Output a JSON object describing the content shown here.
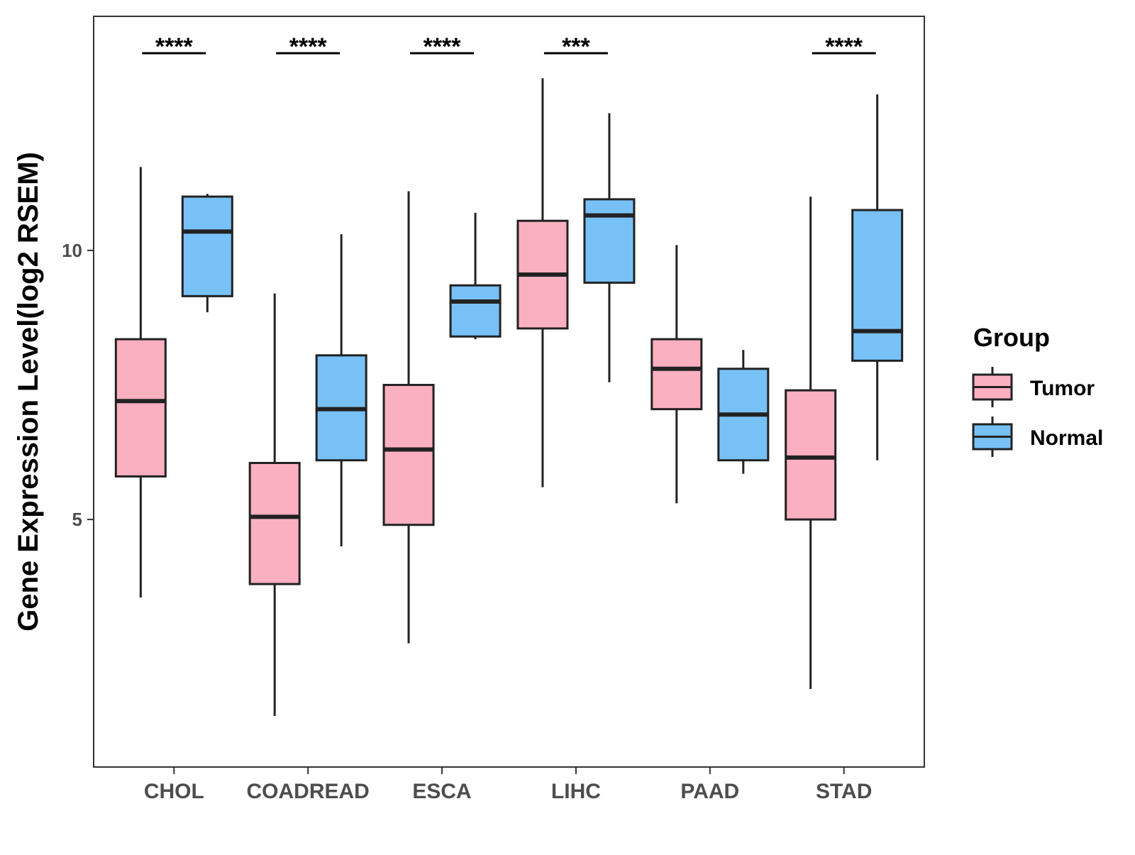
{
  "chart_data": {
    "type": "boxplot",
    "title": "",
    "xlabel": "",
    "ylabel": "Gene Expression Level(log2 RSEM)",
    "ylim": [
      0.4,
      14.35
    ],
    "yticks": [
      5,
      10
    ],
    "ytick_labels": [
      "5",
      "10"
    ],
    "categories": [
      "CHOL",
      "COADREAD",
      "ESCA",
      "LIHC",
      "PAAD",
      "STAD"
    ],
    "legend": {
      "title": "Group",
      "position": "right",
      "items": [
        {
          "label": "Tumor",
          "color": "#fbb0c1"
        },
        {
          "label": "Normal",
          "color": "#77c1f7"
        }
      ]
    },
    "series": [
      {
        "name": "Tumor",
        "color": "#fbb0c1",
        "boxes": [
          {
            "category": "CHOL",
            "whisker_low": 3.55,
            "q1": 5.8,
            "median": 7.2,
            "q3": 8.35,
            "whisker_high": 11.55
          },
          {
            "category": "COADREAD",
            "whisker_low": 1.35,
            "q1": 3.8,
            "median": 5.05,
            "q3": 6.05,
            "whisker_high": 9.2
          },
          {
            "category": "ESCA",
            "whisker_low": 2.7,
            "q1": 4.9,
            "median": 6.3,
            "q3": 7.5,
            "whisker_high": 11.1
          },
          {
            "category": "LIHC",
            "whisker_low": 5.6,
            "q1": 8.55,
            "median": 9.55,
            "q3": 10.55,
            "whisker_high": 13.2
          },
          {
            "category": "PAAD",
            "whisker_low": 5.3,
            "q1": 7.05,
            "median": 7.8,
            "q3": 8.35,
            "whisker_high": 10.1
          },
          {
            "category": "STAD",
            "whisker_low": 1.85,
            "q1": 5.0,
            "median": 6.15,
            "q3": 7.4,
            "whisker_high": 11.0
          }
        ]
      },
      {
        "name": "Normal",
        "color": "#77c1f7",
        "boxes": [
          {
            "category": "CHOL",
            "whisker_low": 8.85,
            "q1": 9.15,
            "median": 10.35,
            "q3": 11.0,
            "whisker_high": 11.05
          },
          {
            "category": "COADREAD",
            "whisker_low": 4.5,
            "q1": 6.1,
            "median": 7.05,
            "q3": 8.05,
            "whisker_high": 10.3
          },
          {
            "category": "ESCA",
            "whisker_low": 8.35,
            "q1": 8.4,
            "median": 9.05,
            "q3": 9.35,
            "whisker_high": 10.7
          },
          {
            "category": "LIHC",
            "whisker_low": 7.55,
            "q1": 9.4,
            "median": 10.65,
            "q3": 10.95,
            "whisker_high": 12.55
          },
          {
            "category": "PAAD",
            "whisker_low": 5.85,
            "q1": 6.1,
            "median": 6.95,
            "q3": 7.8,
            "whisker_high": 8.15
          },
          {
            "category": "STAD",
            "whisker_low": 6.1,
            "q1": 7.95,
            "median": 8.5,
            "q3": 10.75,
            "whisker_high": 12.9
          }
        ]
      }
    ],
    "annotations": [
      {
        "category": "CHOL",
        "label": "****"
      },
      {
        "category": "COADREAD",
        "label": "****"
      },
      {
        "category": "ESCA",
        "label": "****"
      },
      {
        "category": "LIHC",
        "label": "***"
      },
      {
        "category": "STAD",
        "label": "****"
      }
    ]
  }
}
